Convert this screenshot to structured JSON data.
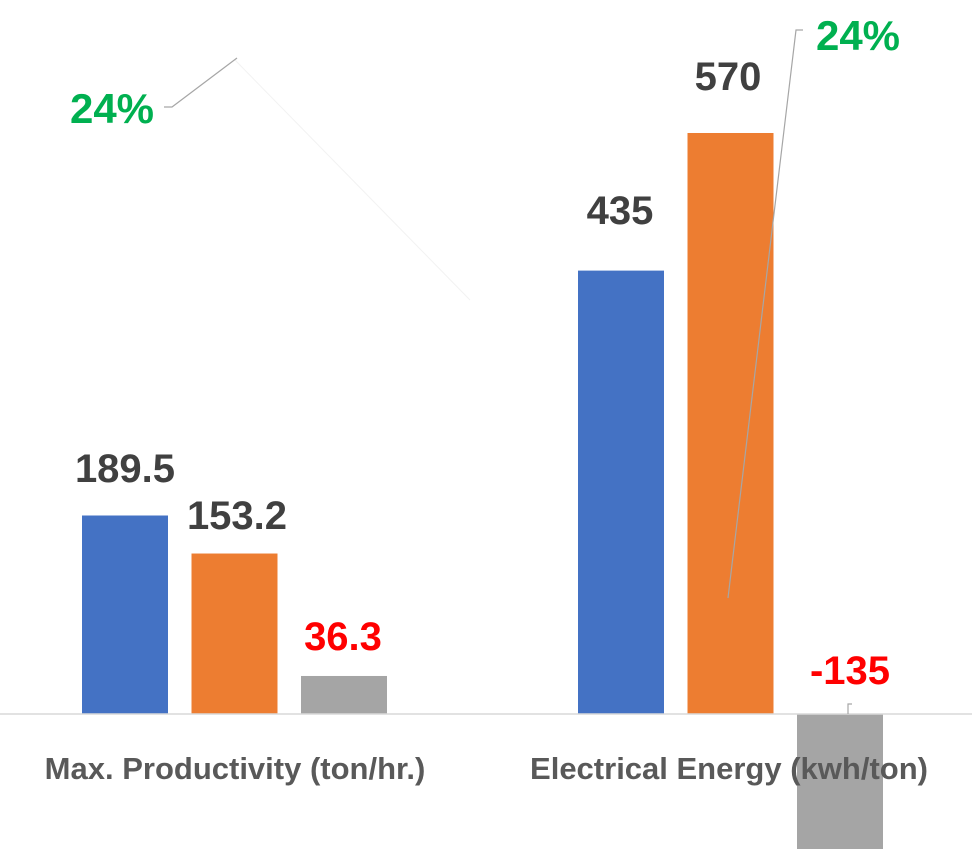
{
  "chart_data": {
    "type": "bar",
    "title": "",
    "xlabel": "",
    "ylabel": "",
    "categories": [
      "Max. Productivity (ton/hr.)",
      "Electrical Energy (kwh/ton)"
    ],
    "series": [
      {
        "values": [
          189.5,
          435
        ],
        "color": "#4472C4",
        "label_color": "#404040"
      },
      {
        "values": [
          153.2,
          570
        ],
        "color": "#ED7D31",
        "label_color": "#404040"
      },
      {
        "values": [
          36.3,
          -135
        ],
        "color": "#A5A5A5",
        "label_color": "#FF0000"
      }
    ],
    "data_labels": [
      [
        "189.5",
        "435"
      ],
      [
        "153.2",
        "570"
      ],
      [
        "36.3",
        "-135"
      ]
    ],
    "annotations": [
      {
        "text": "24%",
        "category": 0,
        "color": "#00B050"
      },
      {
        "text": "24%",
        "category": 1,
        "color": "#00B050"
      }
    ],
    "grid": false,
    "legend": "none"
  }
}
